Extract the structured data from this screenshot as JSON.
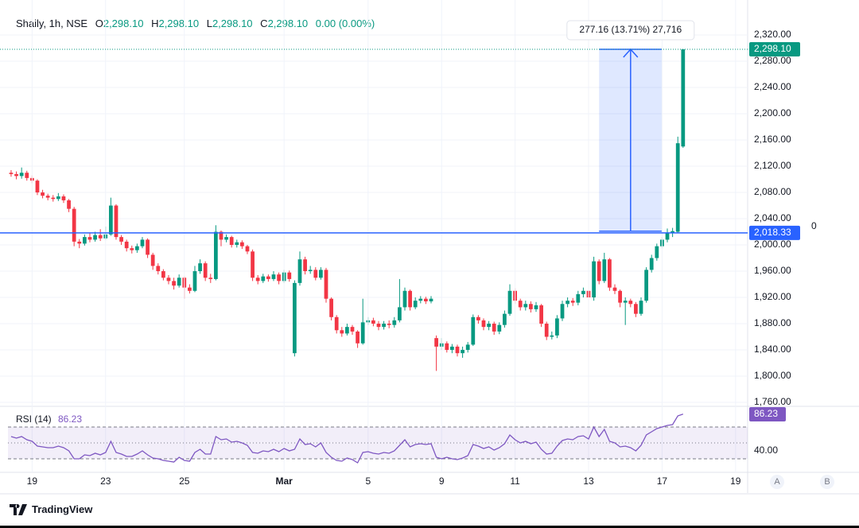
{
  "chart_data": {
    "type": "candlestick",
    "symbol": "Shaily, 1h, NSE",
    "legend": [
      {
        "key": "O",
        "value": "2,298.10"
      },
      {
        "key": "H",
        "value": "2,298.10"
      },
      {
        "key": "L",
        "value": "2,298.10"
      },
      {
        "key": "C",
        "value": "2,298.10"
      }
    ],
    "change": "0.00 (0.00%)",
    "up_color": "#089981",
    "down_color": "#f23645",
    "open": [
      2110,
      2108,
      2105,
      2110,
      2102,
      2098,
      2080,
      2075,
      2072,
      2070,
      2074,
      2068,
      2055,
      2005,
      2002,
      2012,
      2008,
      2015,
      2010,
      2016,
      2060,
      2012,
      2005,
      1995,
      1992,
      1998,
      2008,
      1985,
      1968,
      1960,
      1950,
      1945,
      1938,
      1950,
      1935,
      1930,
      1960,
      1972,
      1950,
      1948,
      2020,
      2008,
      2012,
      2000,
      2004,
      1998,
      1990,
      1950,
      1945,
      1952,
      1948,
      1955,
      1945,
      1958,
      1835,
      1942,
      1978,
      1960,
      1962,
      1950,
      1962,
      1918,
      1890,
      1870,
      1865,
      1875,
      1868,
      1850,
      1882,
      1885,
      1880,
      1875,
      1880,
      1878,
      1885,
      1905,
      1930,
      1905,
      1915,
      1918,
      1914,
      1858,
      1845,
      1850,
      1840,
      1845,
      1835,
      1840,
      1848,
      1890,
      1885,
      1875,
      1880,
      1868,
      1878,
      1895,
      1930,
      1915,
      1905,
      1910,
      1902,
      1908,
      1880,
      1860,
      1862,
      1888,
      1910,
      1915,
      1912,
      1925,
      1930,
      1920,
      1975,
      1945,
      1978,
      1935,
      1930,
      1912,
      1915,
      1910,
      1895,
      1915,
      1962,
      1980,
      1998,
      2008,
      2018,
      2020,
      2150
    ],
    "high": [
      2114,
      2112,
      2118,
      2113,
      2106,
      2100,
      2084,
      2078,
      2076,
      2079,
      2077,
      2070,
      2058,
      2009,
      2016,
      2018,
      2020,
      2024,
      2028,
      2072,
      2062,
      2015,
      2008,
      1999,
      2002,
      2012,
      2010,
      1988,
      1972,
      1963,
      1954,
      1950,
      1955,
      1952,
      1940,
      1968,
      1978,
      1975,
      1956,
      2030,
      2022,
      2016,
      2014,
      2008,
      2007,
      2000,
      1993,
      1954,
      1956,
      1955,
      1960,
      1958,
      1962,
      1961,
      1946,
      1990,
      1982,
      1968,
      1966,
      1966,
      1965,
      1920,
      1893,
      1875,
      1880,
      1878,
      1870,
      1918,
      1890,
      1889,
      1884,
      1884,
      1885,
      1890,
      1948,
      1935,
      1932,
      1920,
      1922,
      1921,
      1922,
      1862,
      1858,
      1853,
      1849,
      1848,
      1845,
      1852,
      1894,
      1893,
      1888,
      1884,
      1883,
      1882,
      1900,
      1940,
      1934,
      1918,
      1915,
      1914,
      1913,
      1910,
      1883,
      1868,
      1893,
      1915,
      1920,
      1919,
      1930,
      1935,
      1934,
      1982,
      1978,
      1988,
      1980,
      1940,
      1932,
      1920,
      1918,
      1913,
      1920,
      1966,
      1985,
      2002,
      2012,
      2025,
      2026,
      2165,
      2298.1
    ],
    "low": [
      2104,
      2100,
      2101,
      2098,
      2094,
      2076,
      2071,
      2068,
      2066,
      2067,
      2064,
      2050,
      1998,
      1995,
      1999,
      2004,
      2005,
      2006,
      2008,
      2014,
      2008,
      2000,
      1990,
      1987,
      1988,
      1995,
      1980,
      1962,
      1955,
      1946,
      1940,
      1932,
      1935,
      1918,
      1926,
      1928,
      1956,
      1945,
      1942,
      1946,
      1998,
      2004,
      1996,
      1996,
      1994,
      1986,
      1945,
      1940,
      1942,
      1944,
      1945,
      1940,
      1942,
      1944,
      1830,
      1938,
      1955,
      1956,
      1946,
      1947,
      1912,
      1885,
      1865,
      1860,
      1862,
      1863,
      1843,
      1848,
      1878,
      1876,
      1870,
      1871,
      1873,
      1874,
      1882,
      1900,
      1900,
      1902,
      1911,
      1910,
      1911,
      1808,
      1840,
      1836,
      1835,
      1830,
      1828,
      1836,
      1846,
      1880,
      1870,
      1870,
      1863,
      1864,
      1874,
      1892,
      1910,
      1900,
      1900,
      1897,
      1898,
      1875,
      1855,
      1856,
      1858,
      1884,
      1905,
      1907,
      1908,
      1920,
      1915,
      1915,
      1940,
      1942,
      1930,
      1925,
      1905,
      1878,
      1905,
      1890,
      1892,
      1912,
      1958,
      1976,
      1995,
      2004,
      2012,
      2018,
      2148
    ],
    "close": [
      2108,
      2105,
      2110,
      2102,
      2098,
      2080,
      2075,
      2072,
      2070,
      2074,
      2068,
      2055,
      2005,
      2002,
      2012,
      2008,
      2015,
      2010,
      2016,
      2060,
      2012,
      2005,
      1995,
      1992,
      1998,
      2008,
      1985,
      1968,
      1960,
      1950,
      1945,
      1938,
      1950,
      1935,
      1930,
      1960,
      1972,
      1950,
      1948,
      2020,
      2008,
      2012,
      2000,
      2004,
      1998,
      1990,
      1950,
      1945,
      1952,
      1948,
      1955,
      1945,
      1958,
      1948,
      1942,
      1978,
      1960,
      1962,
      1950,
      1962,
      1918,
      1890,
      1870,
      1865,
      1875,
      1868,
      1850,
      1882,
      1885,
      1880,
      1875,
      1880,
      1878,
      1885,
      1905,
      1930,
      1905,
      1915,
      1918,
      1914,
      1918,
      1845,
      1850,
      1840,
      1845,
      1835,
      1840,
      1848,
      1890,
      1885,
      1875,
      1880,
      1868,
      1878,
      1895,
      1930,
      1915,
      1905,
      1910,
      1902,
      1908,
      1880,
      1860,
      1862,
      1888,
      1910,
      1915,
      1912,
      1925,
      1930,
      1920,
      1975,
      1945,
      1978,
      1935,
      1930,
      1912,
      1915,
      1910,
      1895,
      1915,
      1962,
      1980,
      1998,
      2008,
      2018,
      2021,
      2155,
      2298.1
    ],
    "xlim": [
      -0.6,
      140.3
    ],
    "xticks": [
      {
        "value": 4,
        "label": "19"
      },
      {
        "value": 18,
        "label": "23"
      },
      {
        "value": 33,
        "label": "25"
      },
      {
        "value": 52,
        "label": "Mar"
      },
      {
        "value": 68,
        "label": "5"
      },
      {
        "value": 82,
        "label": "9"
      },
      {
        "value": 96,
        "label": "11"
      },
      {
        "value": 110,
        "label": "13"
      },
      {
        "value": 124,
        "label": "17"
      },
      {
        "value": 138,
        "label": "19"
      }
    ],
    "ylim": [
      1755.2,
      2373.3
    ],
    "yticks": [
      {
        "value": 1760,
        "label": "1,760.00"
      },
      {
        "value": 1800,
        "label": "1,800.00"
      },
      {
        "value": 1840,
        "label": "1,840.00"
      },
      {
        "value": 1880,
        "label": "1,880.00"
      },
      {
        "value": 1920,
        "label": "1,920.00"
      },
      {
        "value": 1960,
        "label": "1,960.00"
      },
      {
        "value": 2000,
        "label": "2,000.00"
      },
      {
        "value": 2040,
        "label": "2,040.00"
      },
      {
        "value": 2080,
        "label": "2,080.00"
      },
      {
        "value": 2120,
        "label": "2,120.00"
      },
      {
        "value": 2160,
        "label": "2,160.00"
      },
      {
        "value": 2200,
        "label": "2,200.00"
      },
      {
        "value": 2240,
        "label": "2,240.00"
      },
      {
        "value": 2280,
        "label": "2,280.00"
      },
      {
        "value": 2320,
        "label": "2,320.00"
      }
    ],
    "grid": true,
    "last_price": {
      "value": 2298.1,
      "label": "2,298.10"
    },
    "horizontal_line": {
      "value": 2018.33,
      "label": "2,018.33",
      "level_text": "0",
      "color": "#2962ff"
    },
    "measure": {
      "label": "277.16 (13.71%) 27,716",
      "from": 2020.94,
      "to": 2298.1,
      "start": 112,
      "end": 124,
      "color": "#2962ff"
    },
    "rsi": {
      "title": "RSI (14)",
      "value_label": "86.23",
      "color": "#7e57c2",
      "values": [
        58,
        56,
        58,
        54,
        52,
        46,
        45,
        44,
        44,
        46,
        44,
        40,
        30,
        30,
        35,
        34,
        37,
        35,
        38,
        52,
        38,
        36,
        33,
        33,
        36,
        40,
        35,
        31,
        30,
        28,
        27,
        26,
        32,
        28,
        27,
        38,
        42,
        36,
        36,
        58,
        54,
        55,
        51,
        52,
        50,
        47,
        38,
        37,
        40,
        39,
        42,
        39,
        43,
        40,
        42,
        55,
        48,
        49,
        45,
        50,
        38,
        32,
        28,
        27,
        31,
        29,
        25,
        38,
        39,
        37,
        36,
        38,
        37,
        40,
        47,
        54,
        45,
        48,
        49,
        48,
        49,
        32,
        30,
        32,
        30,
        29,
        31,
        34,
        48,
        46,
        43,
        45,
        41,
        44,
        49,
        60,
        54,
        50,
        52,
        49,
        51,
        42,
        36,
        37,
        46,
        53,
        55,
        54,
        58,
        59,
        55,
        70,
        58,
        67,
        52,
        50,
        45,
        46,
        44,
        40,
        47,
        60,
        64,
        68,
        70,
        72,
        73,
        84,
        86.23
      ],
      "ylim": [
        13,
        95
      ],
      "yticks": [
        {
          "value": 40,
          "label": "40.00"
        }
      ],
      "levels": [
        30,
        50,
        70
      ]
    },
    "controls": [
      "A",
      "B"
    ],
    "brand": "TradingView"
  }
}
